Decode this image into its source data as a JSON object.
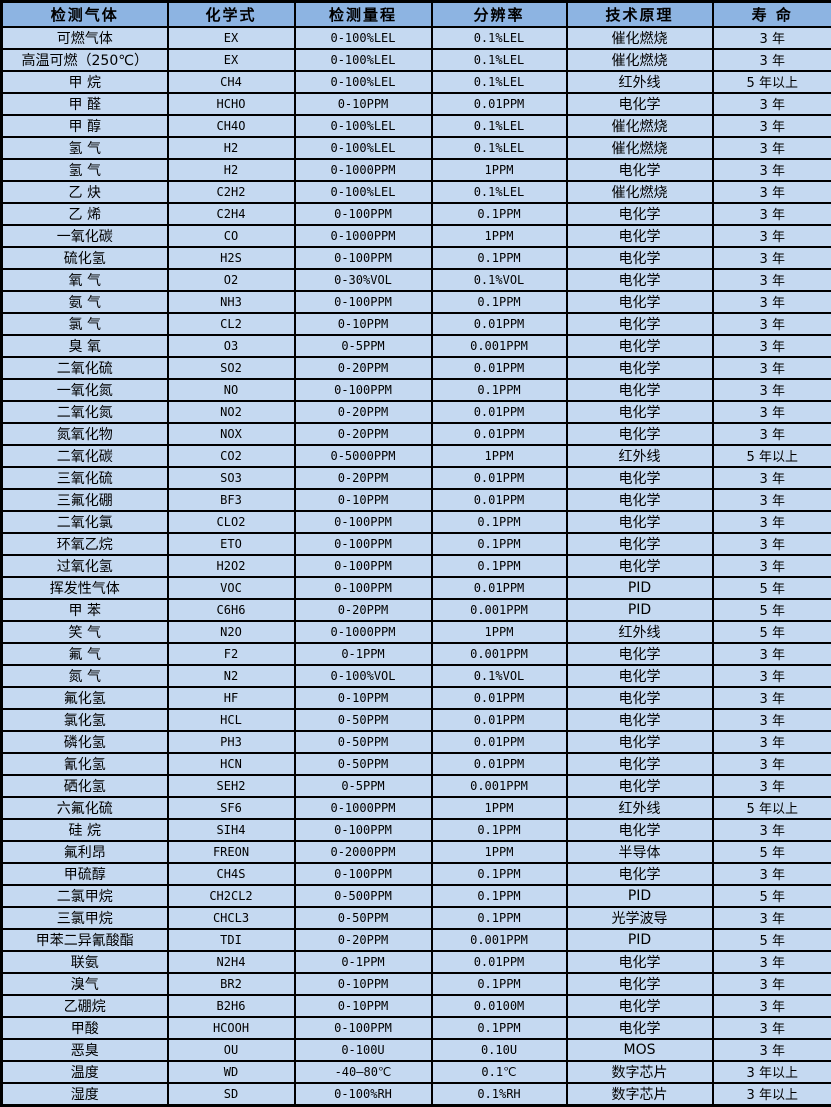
{
  "colors": {
    "header_bg": "#8db4e2",
    "row_bg": "#c5d9f1",
    "border": "#000000",
    "text": "#000000"
  },
  "table": {
    "headers": [
      "检测气体",
      "化学式",
      "检测量程",
      "分辨率",
      "技术原理",
      "寿 命"
    ],
    "rows": [
      [
        "可燃气体",
        "EX",
        "0-100%LEL",
        "0.1%LEL",
        "催化燃烧",
        "3 年"
      ],
      [
        "高温可燃（250℃）",
        "EX",
        "0-100%LEL",
        "0.1%LEL",
        "催化燃烧",
        "3 年"
      ],
      [
        "甲 烷",
        "CH4",
        "0-100%LEL",
        "0.1%LEL",
        "红外线",
        "5 年以上"
      ],
      [
        "甲 醛",
        "HCHO",
        "0-10PPM",
        "0.01PPM",
        "电化学",
        "3 年"
      ],
      [
        "甲 醇",
        "CH4O",
        "0-100%LEL",
        "0.1%LEL",
        "催化燃烧",
        "3 年"
      ],
      [
        "氢 气",
        "H2",
        "0-100%LEL",
        "0.1%LEL",
        "催化燃烧",
        "3 年"
      ],
      [
        "氢 气",
        "H2",
        "0-1000PPM",
        "1PPM",
        "电化学",
        "3 年"
      ],
      [
        "乙 炔",
        "C2H2",
        "0-100%LEL",
        "0.1%LEL",
        "催化燃烧",
        "3 年"
      ],
      [
        "乙 烯",
        "C2H4",
        "0-100PPM",
        "0.1PPM",
        "电化学",
        "3 年"
      ],
      [
        "一氧化碳",
        "CO",
        "0-1000PPM",
        "1PPM",
        "电化学",
        "3 年"
      ],
      [
        "硫化氢",
        "H2S",
        "0-100PPM",
        "0.1PPM",
        "电化学",
        "3 年"
      ],
      [
        "氧 气",
        "O2",
        "0-30%VOL",
        "0.1%VOL",
        "电化学",
        "3 年"
      ],
      [
        "氨 气",
        "NH3",
        "0-100PPM",
        "0.1PPM",
        "电化学",
        "3 年"
      ],
      [
        "氯 气",
        "CL2",
        "0-10PPM",
        "0.01PPM",
        "电化学",
        "3 年"
      ],
      [
        "臭 氧",
        "O3",
        "0-5PPM",
        "0.001PPM",
        "电化学",
        "3 年"
      ],
      [
        "二氧化硫",
        "SO2",
        "0-20PPM",
        "0.01PPM",
        "电化学",
        "3 年"
      ],
      [
        "一氧化氮",
        "NO",
        "0-100PPM",
        "0.1PPM",
        "电化学",
        "3 年"
      ],
      [
        "二氧化氮",
        "NO2",
        "0-20PPM",
        "0.01PPM",
        "电化学",
        "3 年"
      ],
      [
        "氮氧化物",
        "NOX",
        "0-20PPM",
        "0.01PPM",
        "电化学",
        "3 年"
      ],
      [
        "二氧化碳",
        "CO2",
        "0-5000PPM",
        "1PPM",
        "红外线",
        "5 年以上"
      ],
      [
        "三氧化硫",
        "SO3",
        "0-20PPM",
        "0.01PPM",
        "电化学",
        "3 年"
      ],
      [
        "三氟化硼",
        "BF3",
        "0-10PPM",
        "0.01PPM",
        "电化学",
        "3 年"
      ],
      [
        "二氧化氯",
        "CLO2",
        "0-100PPM",
        "0.1PPM",
        "电化学",
        "3 年"
      ],
      [
        "环氧乙烷",
        "ETO",
        "0-100PPM",
        "0.1PPM",
        "电化学",
        "3 年"
      ],
      [
        "过氧化氢",
        "H2O2",
        "0-100PPM",
        "0.1PPM",
        "电化学",
        "3 年"
      ],
      [
        "挥发性气体",
        "VOC",
        "0-100PPM",
        "0.01PPM",
        "PID",
        "5 年"
      ],
      [
        "甲 苯",
        "C6H6",
        "0-20PPM",
        "0.001PPM",
        "PID",
        "5 年"
      ],
      [
        "笑 气",
        "N2O",
        "0-1000PPM",
        "1PPM",
        "红外线",
        "5 年"
      ],
      [
        "氟 气",
        "F2",
        "0-1PPM",
        "0.001PPM",
        "电化学",
        "3 年"
      ],
      [
        "氮 气",
        "N2",
        "0-100%VOL",
        "0.1%VOL",
        "电化学",
        "3 年"
      ],
      [
        "氟化氢",
        "HF",
        "0-10PPM",
        "0.01PPM",
        "电化学",
        "3 年"
      ],
      [
        "氯化氢",
        "HCL",
        "0-50PPM",
        "0.01PPM",
        "电化学",
        "3 年"
      ],
      [
        "磷化氢",
        "PH3",
        "0-50PPM",
        "0.01PPM",
        "电化学",
        "3 年"
      ],
      [
        "氰化氢",
        "HCN",
        "0-50PPM",
        "0.01PPM",
        "电化学",
        "3 年"
      ],
      [
        "硒化氢",
        "SEH2",
        "0-5PPM",
        "0.001PPM",
        "电化学",
        "3 年"
      ],
      [
        "六氟化硫",
        "SF6",
        "0-1000PPM",
        "1PPM",
        "红外线",
        "5 年以上"
      ],
      [
        "硅 烷",
        "SIH4",
        "0-100PPM",
        "0.1PPM",
        "电化学",
        "3 年"
      ],
      [
        "氟利昂",
        "FREON",
        "0-2000PPM",
        "1PPM",
        "半导体",
        "5 年"
      ],
      [
        "甲硫醇",
        "CH4S",
        "0-100PPM",
        "0.1PPM",
        "电化学",
        "3 年"
      ],
      [
        "二氯甲烷",
        "CH2CL2",
        "0-500PPM",
        "0.1PPM",
        "PID",
        "5 年"
      ],
      [
        "三氯甲烷",
        "CHCL3",
        "0-50PPM",
        "0.1PPM",
        "光学波导",
        "3 年"
      ],
      [
        "甲苯二异氰酸酯",
        "TDI",
        "0-20PPM",
        "0.001PPM",
        "PID",
        "5 年"
      ],
      [
        "联氨",
        "N2H4",
        "0-1PPM",
        "0.01PPM",
        "电化学",
        "3 年"
      ],
      [
        "溴气",
        "BR2",
        "0-10PPM",
        "0.1PPM",
        "电化学",
        "3 年"
      ],
      [
        "乙硼烷",
        "B2H6",
        "0-10PPM",
        "0.0100M",
        "电化学",
        "3 年"
      ],
      [
        "甲酸",
        "HCOOH",
        "0-100PPM",
        "0.1PPM",
        "电化学",
        "3 年"
      ],
      [
        "恶臭",
        "OU",
        "0-100U",
        "0.10U",
        "MOS",
        "3 年"
      ],
      [
        "温度",
        "WD",
        "-40—80℃",
        "0.1℃",
        "数字芯片",
        "3 年以上"
      ],
      [
        "湿度",
        "SD",
        "0-100%RH",
        "0.1%RH",
        "数字芯片",
        "3 年以上"
      ]
    ]
  }
}
